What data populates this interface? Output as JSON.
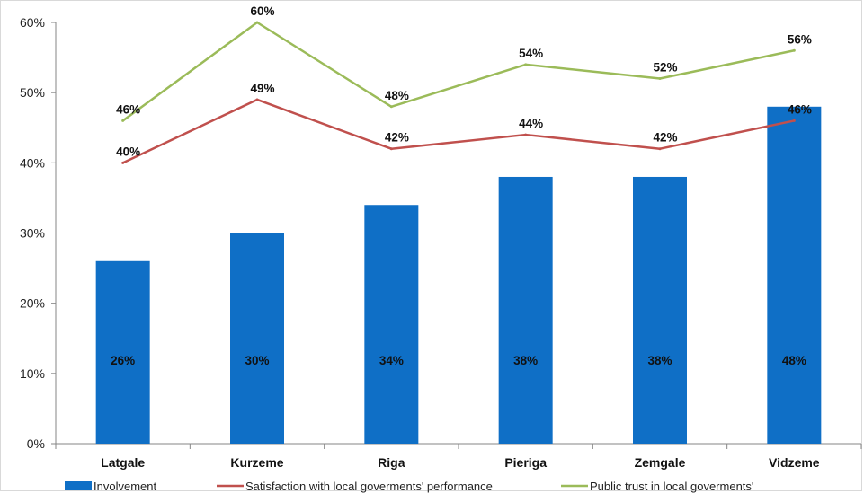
{
  "chart_data": {
    "type": "bar",
    "categories": [
      "Latgale",
      "Kurzeme",
      "Riga",
      "Pieriga",
      "Zemgale",
      "Vidzeme"
    ],
    "ylim": [
      0,
      60
    ],
    "yticks": [
      "0%",
      "10%",
      "20%",
      "30%",
      "40%",
      "50%",
      "60%"
    ],
    "grid": false,
    "legend_position": "bottom",
    "series": [
      {
        "name": "Involvement",
        "type": "bar",
        "color": "#0f6fc6",
        "values": [
          26,
          30,
          34,
          38,
          38,
          48
        ],
        "labels": [
          "26%",
          "30%",
          "34%",
          "38%",
          "38%",
          "48%"
        ]
      },
      {
        "name": "Satisfaction with local goverments' performance",
        "type": "line",
        "color": "#c0504d",
        "values": [
          40,
          49,
          42,
          44,
          42,
          46
        ],
        "labels": [
          "40%",
          "49%",
          "42%",
          "44%",
          "42%",
          "46%"
        ]
      },
      {
        "name": "Public trust in local goverments'",
        "type": "line",
        "color": "#9bbb59",
        "values": [
          46,
          60,
          48,
          54,
          52,
          56
        ],
        "labels": [
          "46%",
          "60%",
          "48%",
          "54%",
          "52%",
          "56%"
        ]
      }
    ]
  }
}
